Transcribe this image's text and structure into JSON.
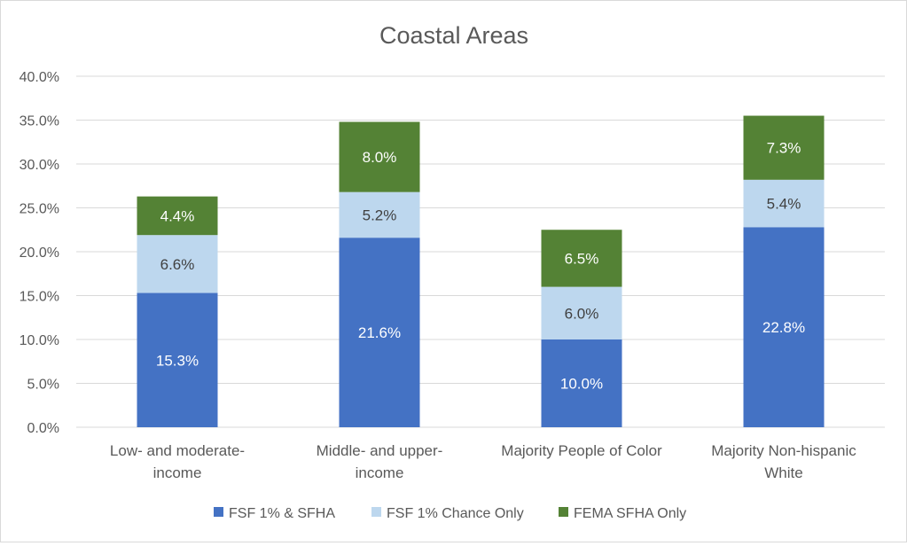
{
  "chart_data": {
    "type": "bar",
    "stacked": true,
    "title": "Coastal Areas",
    "categories": [
      [
        "Low- and moderate-",
        "income"
      ],
      [
        "Middle- and upper-",
        "income"
      ],
      [
        "Majority People of Color"
      ],
      [
        "Majority Non-hispanic",
        "White"
      ]
    ],
    "series": [
      {
        "name": "FSF 1% & SFHA",
        "color": "#4472C4",
        "label_color": "#ffffff",
        "values": [
          15.3,
          21.6,
          10.0,
          22.8
        ],
        "labels": [
          "15.3%",
          "21.6%",
          "10.0%",
          "22.8%"
        ]
      },
      {
        "name": "FSF 1% Chance Only",
        "color": "#BDD7EE",
        "label_color": "#404040",
        "values": [
          6.6,
          5.2,
          6.0,
          5.4
        ],
        "labels": [
          "6.6%",
          "5.2%",
          "6.0%",
          "5.4%"
        ]
      },
      {
        "name": "FEMA SFHA Only",
        "color": "#548235",
        "label_color": "#ffffff",
        "values": [
          4.4,
          8.0,
          6.5,
          7.3
        ],
        "labels": [
          "4.4%",
          "8.0%",
          "6.5%",
          "7.3%"
        ]
      }
    ],
    "ylim": [
      0,
      40
    ],
    "yticks": [
      {
        "value": 0,
        "label": "0.0%"
      },
      {
        "value": 5,
        "label": "5.0%"
      },
      {
        "value": 10,
        "label": "10.0%"
      },
      {
        "value": 15,
        "label": "15.0%"
      },
      {
        "value": 20,
        "label": "20.0%"
      },
      {
        "value": 25,
        "label": "25.0%"
      },
      {
        "value": 30,
        "label": "30.0%"
      },
      {
        "value": 35,
        "label": "35.0%"
      },
      {
        "value": 40,
        "label": "40.0%"
      }
    ],
    "grid": true,
    "legend_position": "bottom"
  }
}
